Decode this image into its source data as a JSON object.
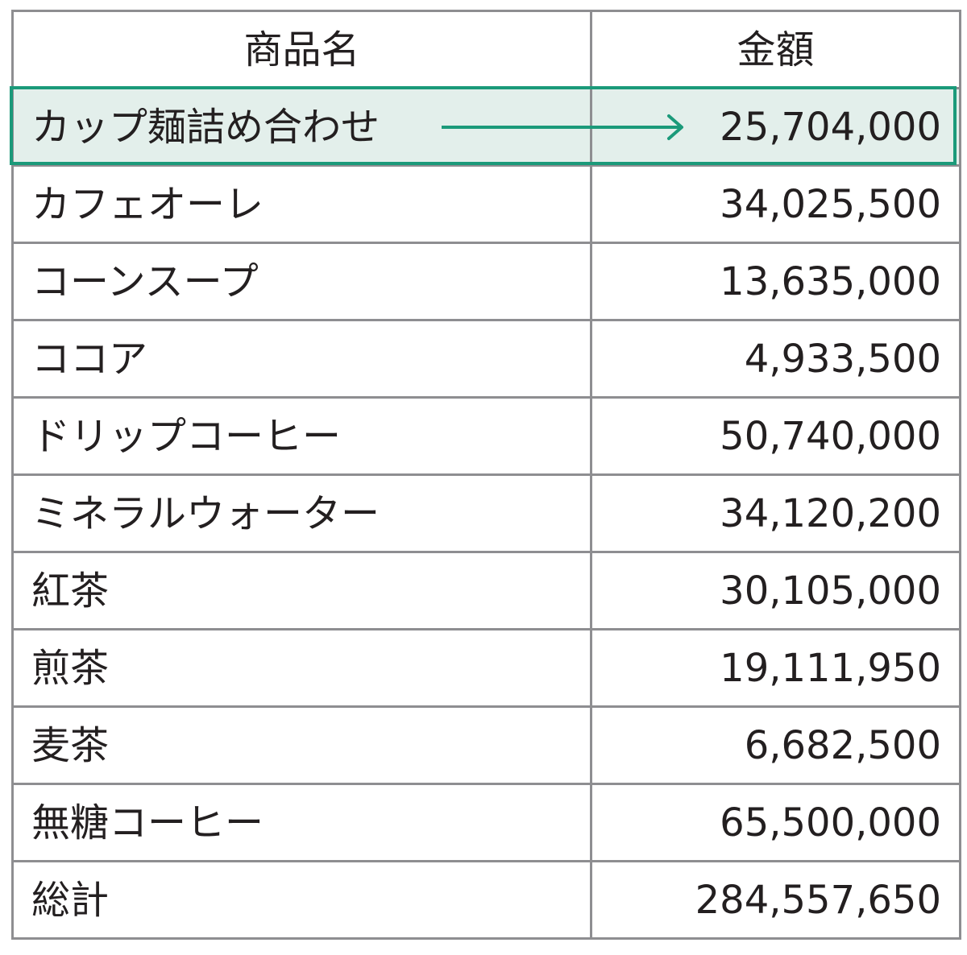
{
  "table": {
    "headers": {
      "name": "商品名",
      "amount": "金額"
    },
    "rows": [
      {
        "name": "カップ麺詰め合わせ",
        "amount": "25,704,000",
        "highlighted": true
      },
      {
        "name": "カフェオーレ",
        "amount": "34,025,500"
      },
      {
        "name": "コーンスープ",
        "amount": "13,635,000"
      },
      {
        "name": "ココア",
        "amount": "4,933,500"
      },
      {
        "name": "ドリップコーヒー",
        "amount": "50,740,000"
      },
      {
        "name": "ミネラルウォーター",
        "amount": "34,120,200"
      },
      {
        "name": "紅茶",
        "amount": "30,105,000"
      },
      {
        "name": "煎茶",
        "amount": "19,111,950"
      },
      {
        "name": "麦茶",
        "amount": "6,682,500"
      },
      {
        "name": "無糖コーヒー",
        "amount": "65,500,000"
      },
      {
        "name": "総計",
        "amount": "284,557,650"
      }
    ]
  },
  "colors": {
    "highlight_border": "#1b9a7a",
    "highlight_fill": "#e3efeb",
    "grid": "#8e8e91",
    "text": "#231f20"
  },
  "icons": {
    "highlight_arrow": "arrow-right-icon"
  }
}
